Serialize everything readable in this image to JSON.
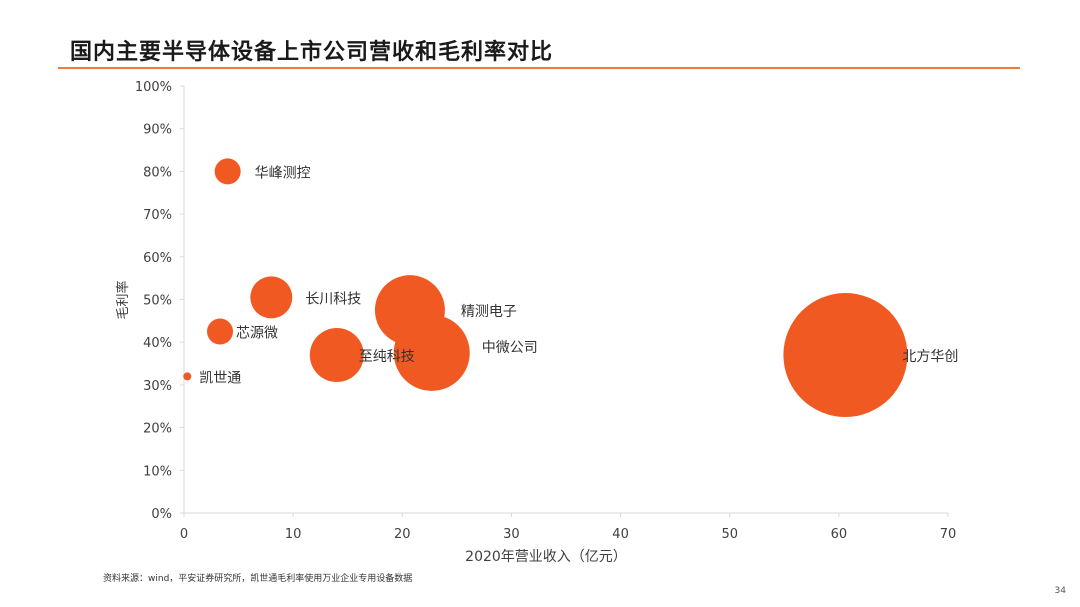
{
  "slide": {
    "title": "国内主要半导体设备上市公司营收和毛利率对比",
    "source": "资料来源：wind，平安证券研究所，凯世通毛利率使用万业企业专用设备数据",
    "page_number": "34"
  },
  "colors": {
    "accent": "#ee7a3c",
    "bubble": "#f05a22",
    "axis": "#d9d9d9"
  },
  "chart_data": {
    "type": "scatter",
    "title": "",
    "xlabel": "2020年营业收入（亿元）",
    "ylabel": "毛利率",
    "xlim": [
      0,
      70
    ],
    "ylim": [
      0,
      100
    ],
    "x_ticks": [
      0,
      10,
      20,
      30,
      40,
      50,
      60,
      70
    ],
    "y_ticks": [
      0,
      10,
      20,
      30,
      40,
      50,
      60,
      70,
      80,
      90,
      100
    ],
    "y_tick_suffix": "%",
    "grid": false,
    "series": [
      {
        "points": [
          {
            "label": "华峰测控",
            "x": 4.0,
            "y": 80
          },
          {
            "label": "长川科技",
            "x": 8.0,
            "y": 50.5
          },
          {
            "label": "芯源微",
            "x": 3.3,
            "y": 42.5
          },
          {
            "label": "凯世通",
            "x": 0.3,
            "y": 32
          },
          {
            "label": "精测电子",
            "x": 20.7,
            "y": 47.5
          },
          {
            "label": "至纯科技",
            "x": 14.0,
            "y": 37
          },
          {
            "label": "中微公司",
            "x": 22.7,
            "y": 37.5
          },
          {
            "label": "北方华创",
            "x": 60.6,
            "y": 37
          }
        ]
      }
    ]
  }
}
